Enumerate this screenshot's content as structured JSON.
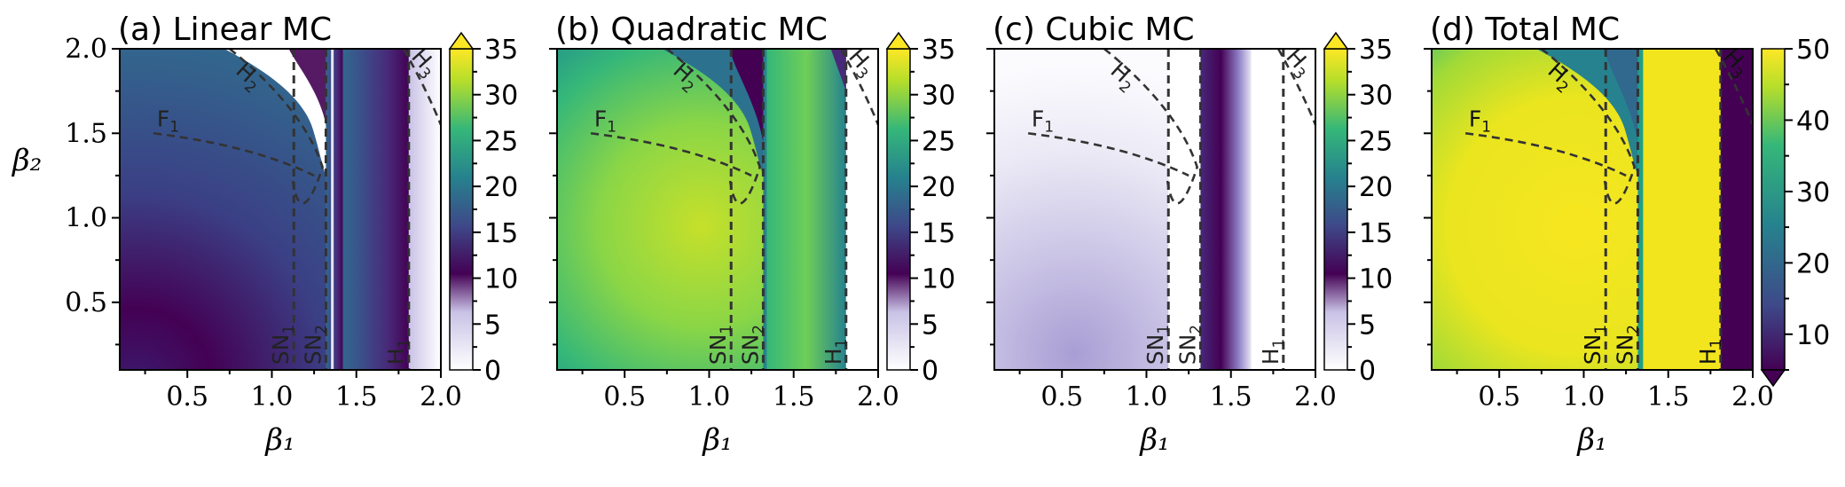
{
  "chart_data": [
    {
      "type": "heatmap",
      "title": "(a) Linear MC",
      "xlabel": "β₁",
      "ylabel": "β₂",
      "xlim": [
        0.1,
        2.0
      ],
      "ylim": [
        0.1,
        2.0
      ],
      "xticks": [
        "0.5",
        "1.0",
        "1.5",
        "2.0"
      ],
      "yticks": [
        "0.5",
        "1.0",
        "1.5",
        "2.0"
      ],
      "colormap": "viridis-to-white",
      "colorbar": {
        "ticks": [
          "0",
          "5",
          "10",
          "15",
          "20",
          "25",
          "30",
          "35"
        ],
        "range": [
          0,
          35
        ],
        "extend": "max"
      },
      "curves": {
        "F1": {
          "label": "F",
          "sub": "1",
          "points": [
            [
              0.3,
              1.5
            ],
            [
              0.7,
              1.45
            ],
            [
              1.0,
              1.37
            ],
            [
              1.25,
              1.25
            ]
          ]
        },
        "H2": {
          "label": "H",
          "sub": "2",
          "points": [
            [
              0.75,
              2.0
            ],
            [
              1.0,
              1.8
            ],
            [
              1.22,
              1.55
            ],
            [
              1.3,
              1.3
            ],
            [
              1.22,
              1.05
            ],
            [
              1.15,
              1.0
            ],
            [
              1.12,
              1.25
            ]
          ]
        },
        "H3": {
          "label": "H",
          "sub": "3",
          "points": [
            [
              1.78,
              2.0
            ],
            [
              2.0,
              1.55
            ]
          ]
        },
        "SN1": {
          "label": "SN",
          "sub": "1",
          "x": 1.13
        },
        "SN2": {
          "label": "SN",
          "sub": "2",
          "x": 1.32
        },
        "H1": {
          "label": "H",
          "sub": "1",
          "x": 1.81
        }
      }
    },
    {
      "type": "heatmap",
      "title": "(b) Quadratic MC",
      "xlabel": "β₁",
      "ylabel": "",
      "xlim": [
        0.1,
        2.0
      ],
      "ylim": [
        0.1,
        2.0
      ],
      "xticks": [
        "0.5",
        "1.0",
        "1.5",
        "2.0"
      ],
      "yticks": [],
      "colormap": "viridis-to-white",
      "colorbar": {
        "ticks": [
          "0",
          "5",
          "10",
          "15",
          "20",
          "25",
          "30",
          "35"
        ],
        "range": [
          0,
          35
        ],
        "extend": "max"
      },
      "curves": {
        "F1": {
          "label": "F",
          "sub": "1",
          "points": [
            [
              0.3,
              1.5
            ],
            [
              0.7,
              1.45
            ],
            [
              1.0,
              1.37
            ],
            [
              1.25,
              1.25
            ]
          ]
        },
        "H2": {
          "label": "H",
          "sub": "2",
          "points": [
            [
              0.75,
              2.0
            ],
            [
              1.0,
              1.8
            ],
            [
              1.22,
              1.55
            ],
            [
              1.3,
              1.3
            ],
            [
              1.22,
              1.05
            ],
            [
              1.15,
              1.0
            ],
            [
              1.12,
              1.25
            ]
          ]
        },
        "H3": {
          "label": "H",
          "sub": "3",
          "points": [
            [
              1.78,
              2.0
            ],
            [
              2.0,
              1.55
            ]
          ]
        },
        "SN1": {
          "label": "SN",
          "sub": "1",
          "x": 1.13
        },
        "SN2": {
          "label": "SN",
          "sub": "2",
          "x": 1.32
        },
        "H1": {
          "label": "H",
          "sub": "1",
          "x": 1.81
        }
      }
    },
    {
      "type": "heatmap",
      "title": "(c) Cubic MC",
      "xlabel": "β₁",
      "ylabel": "",
      "xlim": [
        0.1,
        2.0
      ],
      "ylim": [
        0.1,
        2.0
      ],
      "xticks": [
        "0.5",
        "1.0",
        "1.5",
        "2.0"
      ],
      "yticks": [],
      "colormap": "viridis-to-white",
      "colorbar": {
        "ticks": [
          "0",
          "5",
          "10",
          "15",
          "20",
          "25",
          "30",
          "35"
        ],
        "range": [
          0,
          35
        ],
        "extend": "max"
      },
      "curves": {
        "F1": {
          "label": "F",
          "sub": "1",
          "points": [
            [
              0.3,
              1.5
            ],
            [
              0.7,
              1.45
            ],
            [
              1.0,
              1.37
            ],
            [
              1.25,
              1.25
            ]
          ]
        },
        "H2": {
          "label": "H",
          "sub": "2",
          "points": [
            [
              0.75,
              2.0
            ],
            [
              1.0,
              1.8
            ],
            [
              1.22,
              1.55
            ],
            [
              1.3,
              1.3
            ],
            [
              1.22,
              1.05
            ],
            [
              1.15,
              1.0
            ],
            [
              1.12,
              1.25
            ]
          ]
        },
        "H3": {
          "label": "H",
          "sub": "3",
          "points": [
            [
              1.78,
              2.0
            ],
            [
              2.0,
              1.55
            ]
          ]
        },
        "SN1": {
          "label": "SN",
          "sub": "1",
          "x": 1.13
        },
        "SN2": {
          "label": "SN",
          "sub": "2",
          "x": 1.32
        },
        "H1": {
          "label": "H",
          "sub": "1",
          "x": 1.81
        }
      }
    },
    {
      "type": "heatmap",
      "title": "(d) Total MC",
      "xlabel": "β₁",
      "ylabel": "",
      "xlim": [
        0.1,
        2.0
      ],
      "ylim": [
        0.1,
        2.0
      ],
      "xticks": [
        "0.5",
        "1.0",
        "1.5",
        "2.0"
      ],
      "yticks": [],
      "colormap": "viridis",
      "colorbar": {
        "ticks": [
          "10",
          "20",
          "30",
          "40",
          "50"
        ],
        "range": [
          5,
          50
        ],
        "extend": "min"
      },
      "curves": {
        "F1": {
          "label": "F",
          "sub": "1",
          "points": [
            [
              0.3,
              1.5
            ],
            [
              0.7,
              1.45
            ],
            [
              1.0,
              1.37
            ],
            [
              1.25,
              1.25
            ]
          ]
        },
        "H2": {
          "label": "H",
          "sub": "2",
          "points": [
            [
              0.75,
              2.0
            ],
            [
              1.0,
              1.8
            ],
            [
              1.22,
              1.55
            ],
            [
              1.3,
              1.3
            ],
            [
              1.22,
              1.05
            ],
            [
              1.15,
              1.0
            ],
            [
              1.12,
              1.25
            ]
          ]
        },
        "H3": {
          "label": "H",
          "sub": "3",
          "points": [
            [
              1.78,
              2.0
            ],
            [
              2.0,
              1.55
            ]
          ]
        },
        "SN1": {
          "label": "SN",
          "sub": "1",
          "x": 1.13
        },
        "SN2": {
          "label": "SN",
          "sub": "2",
          "x": 1.32
        },
        "H1": {
          "label": "H",
          "sub": "1",
          "x": 1.81
        }
      }
    }
  ],
  "colors": {
    "viridis": [
      "#440154",
      "#482878",
      "#3e4989",
      "#31688e",
      "#26828e",
      "#1f9e89",
      "#35b779",
      "#6ece58",
      "#b5de2b",
      "#fde725"
    ],
    "white": "#ffffff",
    "lightPurple": "#c9c2e6",
    "curve": "#333333"
  }
}
